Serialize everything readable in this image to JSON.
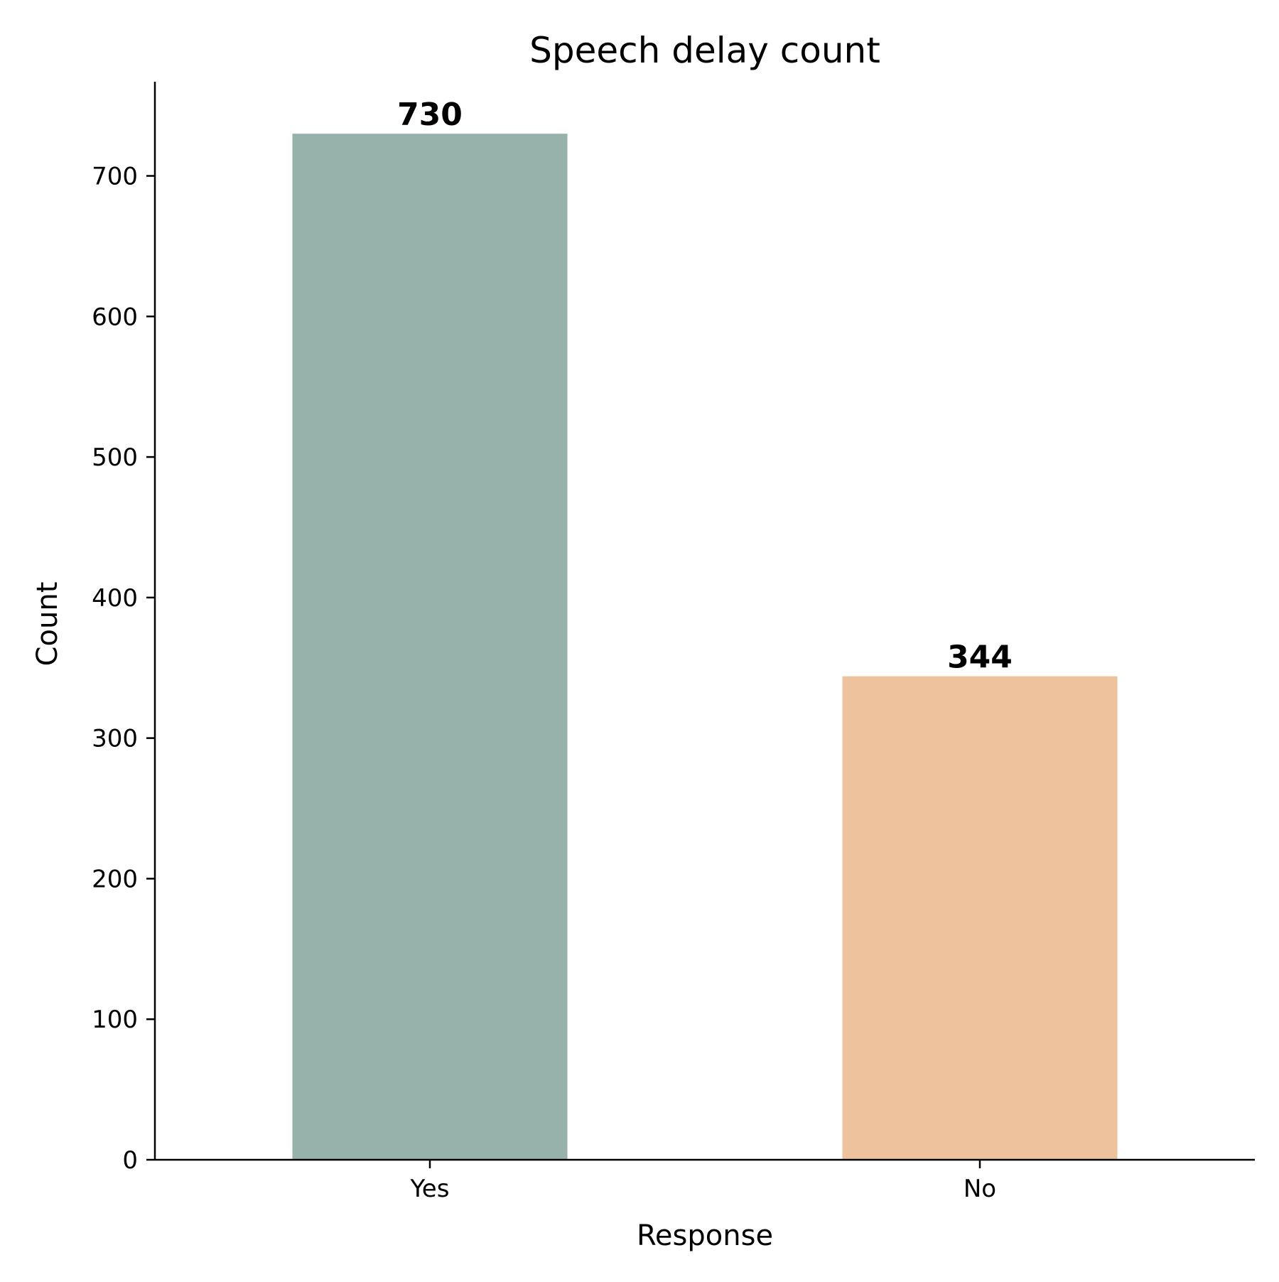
{
  "chart_data": {
    "type": "bar",
    "title": "Speech delay count",
    "xlabel": "Response",
    "ylabel": "Count",
    "categories": [
      "Yes",
      "No"
    ],
    "values": [
      730,
      344
    ],
    "data_labels": [
      "730",
      "344"
    ],
    "colors": [
      "#97b1ab",
      "#eec29d"
    ],
    "ylim": [
      0,
      767
    ],
    "yticks": [
      0,
      100,
      200,
      300,
      400,
      500,
      600,
      700
    ],
    "ytick_labels": [
      "0",
      "100",
      "200",
      "300",
      "400",
      "500",
      "600",
      "700"
    ],
    "grid": false,
    "legend": "none"
  }
}
